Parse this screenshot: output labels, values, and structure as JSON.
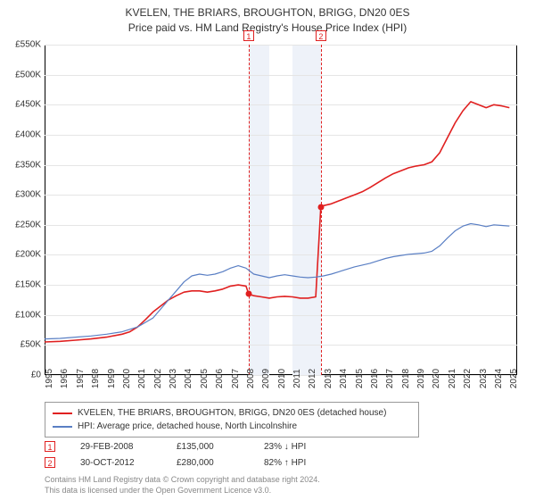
{
  "title": {
    "line1": "KVELEN, THE BRIARS, BROUGHTON, BRIGG, DN20 0ES",
    "line2": "Price paid vs. HM Land Registry's House Price Index (HPI)"
  },
  "chart": {
    "type": "line",
    "x_range": [
      1995,
      2025.5
    ],
    "y_range": [
      0,
      550
    ],
    "y_tick_step": 50,
    "y_prefix": "£",
    "y_suffix": "K",
    "x_ticks": [
      1995,
      1996,
      1997,
      1998,
      1999,
      2000,
      2001,
      2002,
      2003,
      2004,
      2005,
      2006,
      2007,
      2008,
      2009,
      2010,
      2011,
      2012,
      2013,
      2014,
      2015,
      2016,
      2017,
      2018,
      2019,
      2020,
      2021,
      2022,
      2023,
      2024,
      2025
    ],
    "grid_color": "#e5e5e5",
    "background_color": "#ffffff",
    "band_color": "#eef2f9",
    "bands": [
      {
        "from": 2008.17,
        "to": 2009.5
      },
      {
        "from": 2011.0,
        "to": 2012.83
      }
    ],
    "series": [
      {
        "name": "price_paid",
        "label": "KVELEN, THE BRIARS, BROUGHTON, BRIGG, DN20 0ES (detached house)",
        "color": "#e02020",
        "width": 1.6,
        "data": [
          [
            1995,
            55
          ],
          [
            1996,
            56
          ],
          [
            1997,
            58
          ],
          [
            1998,
            60
          ],
          [
            1999,
            63
          ],
          [
            2000,
            68
          ],
          [
            2000.5,
            72
          ],
          [
            2001,
            80
          ],
          [
            2001.5,
            92
          ],
          [
            2002,
            105
          ],
          [
            2002.5,
            115
          ],
          [
            2003,
            125
          ],
          [
            2003.5,
            132
          ],
          [
            2004,
            138
          ],
          [
            2004.5,
            140
          ],
          [
            2005,
            140
          ],
          [
            2005.5,
            138
          ],
          [
            2006,
            140
          ],
          [
            2006.5,
            143
          ],
          [
            2007,
            148
          ],
          [
            2007.5,
            150
          ],
          [
            2008,
            148
          ],
          [
            2008.17,
            135
          ],
          [
            2008.5,
            132
          ],
          [
            2009,
            130
          ],
          [
            2009.5,
            128
          ],
          [
            2010,
            130
          ],
          [
            2010.5,
            131
          ],
          [
            2011,
            130
          ],
          [
            2011.5,
            128
          ],
          [
            2012,
            128
          ],
          [
            2012.5,
            130
          ],
          [
            2012.83,
            280
          ],
          [
            2013,
            282
          ],
          [
            2013.5,
            285
          ],
          [
            2014,
            290
          ],
          [
            2014.5,
            295
          ],
          [
            2015,
            300
          ],
          [
            2015.5,
            305
          ],
          [
            2016,
            312
          ],
          [
            2016.5,
            320
          ],
          [
            2017,
            328
          ],
          [
            2017.5,
            335
          ],
          [
            2018,
            340
          ],
          [
            2018.5,
            345
          ],
          [
            2019,
            348
          ],
          [
            2019.5,
            350
          ],
          [
            2020,
            355
          ],
          [
            2020.5,
            370
          ],
          [
            2021,
            395
          ],
          [
            2021.5,
            420
          ],
          [
            2022,
            440
          ],
          [
            2022.5,
            455
          ],
          [
            2023,
            450
          ],
          [
            2023.5,
            445
          ],
          [
            2024,
            450
          ],
          [
            2024.5,
            448
          ],
          [
            2025,
            445
          ]
        ]
      },
      {
        "name": "hpi",
        "label": "HPI: Average price, detached house, North Lincolnshire",
        "color": "#5a7fc4",
        "width": 1.2,
        "data": [
          [
            1995,
            60
          ],
          [
            1996,
            61
          ],
          [
            1997,
            63
          ],
          [
            1998,
            65
          ],
          [
            1999,
            68
          ],
          [
            2000,
            72
          ],
          [
            2001,
            80
          ],
          [
            2002,
            95
          ],
          [
            2002.5,
            110
          ],
          [
            2003,
            125
          ],
          [
            2003.5,
            140
          ],
          [
            2004,
            155
          ],
          [
            2004.5,
            165
          ],
          [
            2005,
            168
          ],
          [
            2005.5,
            166
          ],
          [
            2006,
            168
          ],
          [
            2006.5,
            172
          ],
          [
            2007,
            178
          ],
          [
            2007.5,
            182
          ],
          [
            2008,
            178
          ],
          [
            2008.5,
            168
          ],
          [
            2009,
            165
          ],
          [
            2009.5,
            162
          ],
          [
            2010,
            165
          ],
          [
            2010.5,
            167
          ],
          [
            2011,
            165
          ],
          [
            2011.5,
            163
          ],
          [
            2012,
            162
          ],
          [
            2012.5,
            163
          ],
          [
            2013,
            165
          ],
          [
            2013.5,
            168
          ],
          [
            2014,
            172
          ],
          [
            2014.5,
            176
          ],
          [
            2015,
            180
          ],
          [
            2015.5,
            183
          ],
          [
            2016,
            186
          ],
          [
            2016.5,
            190
          ],
          [
            2017,
            194
          ],
          [
            2017.5,
            197
          ],
          [
            2018,
            199
          ],
          [
            2018.5,
            201
          ],
          [
            2019,
            202
          ],
          [
            2019.5,
            203
          ],
          [
            2020,
            206
          ],
          [
            2020.5,
            215
          ],
          [
            2021,
            228
          ],
          [
            2021.5,
            240
          ],
          [
            2022,
            248
          ],
          [
            2022.5,
            252
          ],
          [
            2023,
            250
          ],
          [
            2023.5,
            247
          ],
          [
            2024,
            250
          ],
          [
            2024.5,
            249
          ],
          [
            2025,
            248
          ]
        ]
      }
    ],
    "sale_markers": [
      {
        "n": "1",
        "x": 2008.17,
        "label_y_offset": -8
      },
      {
        "n": "2",
        "x": 2012.83,
        "label_y_offset": -8
      }
    ],
    "sale_points": [
      {
        "x": 2008.17,
        "y": 135
      },
      {
        "x": 2012.83,
        "y": 280
      }
    ]
  },
  "legend": {
    "items": [
      {
        "color": "#e02020",
        "text": "KVELEN, THE BRIARS, BROUGHTON, BRIGG, DN20 0ES (detached house)"
      },
      {
        "color": "#5a7fc4",
        "text": "HPI: Average price, detached house, North Lincolnshire"
      }
    ]
  },
  "sales_table": [
    {
      "n": "1",
      "date": "29-FEB-2008",
      "price": "£135,000",
      "diff": "23% ↓ HPI"
    },
    {
      "n": "2",
      "date": "30-OCT-2012",
      "price": "£280,000",
      "diff": "82% ↑ HPI"
    }
  ],
  "footer": {
    "line1": "Contains HM Land Registry data © Crown copyright and database right 2024.",
    "line2": "This data is licensed under the Open Government Licence v3.0."
  }
}
